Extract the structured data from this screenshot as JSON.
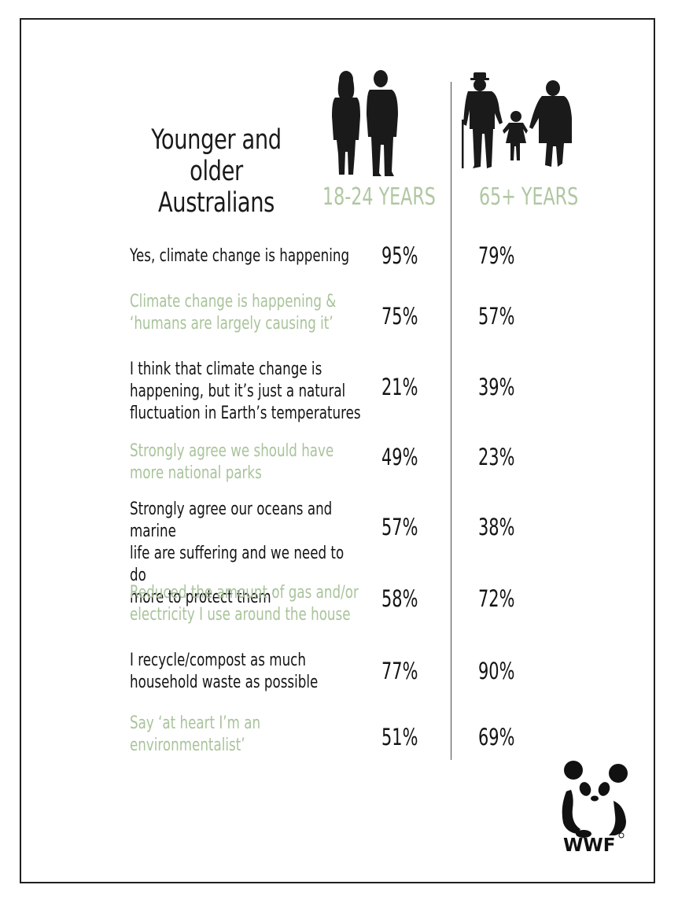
{
  "title": {
    "line1": "Younger and older",
    "line2": "Australians"
  },
  "columns": {
    "young": "18-24 YEARS",
    "old": "65+ YEARS"
  },
  "rows": [
    {
      "label_lines": [
        "Yes,  climate change is happening"
      ],
      "young": "95%",
      "old": "79%"
    },
    {
      "label_lines": [
        "Climate change is happening &",
        "‘humans are largely causing it’"
      ],
      "young": "75%",
      "old": "57%"
    },
    {
      "label_lines": [
        "I think that climate change is",
        "happening, but it’s just a natural",
        "fluctuation in Earth’s temperatures"
      ],
      "young": "21%",
      "old": "39%"
    },
    {
      "label_lines": [
        "Strongly agree we should have",
        "more national parks"
      ],
      "young": "49%",
      "old": "23%"
    },
    {
      "label_lines": [
        "Strongly agree our oceans and marine",
        "life are suffering and we need to do",
        "more to protect them’"
      ],
      "young": "57%",
      "old": "38%"
    },
    {
      "label_lines": [
        "Reduced the amount of gas and/or",
        "electricity I use around the house"
      ],
      "young": "58%",
      "old": "72%"
    },
    {
      "label_lines": [
        "I recycle/compost as much",
        "household waste as possible"
      ],
      "young": "77%",
      "old": "90%"
    },
    {
      "label_lines": [
        "Say ‘at heart I’m an",
        "environmentalist’"
      ],
      "young": "51%",
      "old": "69%"
    }
  ],
  "logo": {
    "text": "WWF",
    "icon": "panda-icon"
  },
  "colors": {
    "accent_green": "#a9c39b",
    "text_dark": "#141414"
  },
  "chart_data": {
    "type": "table",
    "title": "Younger and older Australians",
    "columns": [
      "18-24 YEARS",
      "65+ YEARS"
    ],
    "categories": [
      "Yes,  climate change is happening",
      "Climate change is happening & ‘humans are largely causing it’",
      "I think that climate change is happening, but it’s just a natural fluctuation in Earth’s temperatures",
      "Strongly agree we should have more national parks",
      "Strongly agree our oceans and marine life are suffering and we need to do more to protect them’",
      "Reduced the amount of gas and/or electricity I use around the house",
      "I recycle/compost as much household waste as possible",
      "Say ‘at heart I’m an environmentalist’"
    ],
    "series": [
      {
        "name": "18-24 YEARS",
        "values": [
          95,
          75,
          21,
          49,
          57,
          58,
          77,
          51
        ]
      },
      {
        "name": "65+ YEARS",
        "values": [
          79,
          57,
          39,
          23,
          38,
          72,
          90,
          69
        ]
      }
    ]
  }
}
